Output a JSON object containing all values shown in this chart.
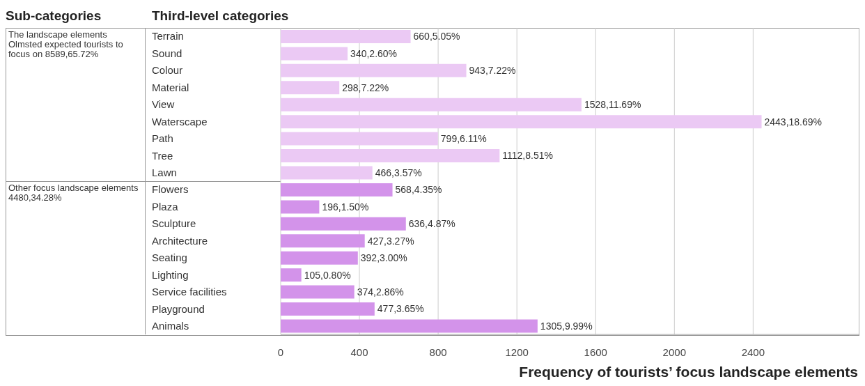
{
  "chart_data": {
    "type": "bar",
    "orientation": "horizontal",
    "ylabel": "Third-level categories",
    "xlabel": "Frequency of tourists’ focus landscape elements",
    "annotations": [
      "Sub-categories",
      "The landscape elements Olmsted expected tourists to focus on 8589,65.72%",
      "Other focus landscape elements 4480,34.28%"
    ],
    "categories": [
      "Terrain",
      "Sound",
      "Colour",
      "Material",
      "View",
      "Waterscape",
      "Path",
      "Tree",
      "Lawn",
      "Flowers",
      "Plaza",
      "Sculpture",
      "Architecture",
      "Seating",
      "Lighting",
      "Service facilities",
      "Playground",
      "Animals"
    ],
    "values": [
      660,
      340,
      943,
      298,
      1528,
      2443,
      799,
      1112,
      466,
      568,
      196,
      636,
      427,
      392,
      105,
      374,
      477,
      1305
    ],
    "value_labels": [
      "660,5.05%",
      "340,2.60%",
      "943,7.22%",
      "298,7.22%",
      "1528,11.69%",
      "2443,18.69%",
      "799,6.11%",
      "1112,8.51%",
      "466,3.57%",
      "568,4.35%",
      "196,1.50%",
      "636,4.87%",
      "427,3.27%",
      "392,3.00%",
      "105,0.80%",
      "374,2.86%",
      "477,3.65%",
      "1305,9.99%"
    ],
    "colors": [
      "#ebc9f4",
      "#ebc9f4",
      "#ebc9f4",
      "#ebc9f4",
      "#ebc9f4",
      "#ebc9f4",
      "#ebc9f4",
      "#ebc9f4",
      "#ebc9f4",
      "#d393ea",
      "#d393ea",
      "#d393ea",
      "#d393ea",
      "#d393ea",
      "#d393ea",
      "#d393ea",
      "#d393ea",
      "#d393ea"
    ],
    "xlim": [
      0,
      2940
    ],
    "xticks": [
      0,
      400,
      800,
      1200,
      1600,
      2000,
      2400
    ],
    "grid": "x"
  }
}
